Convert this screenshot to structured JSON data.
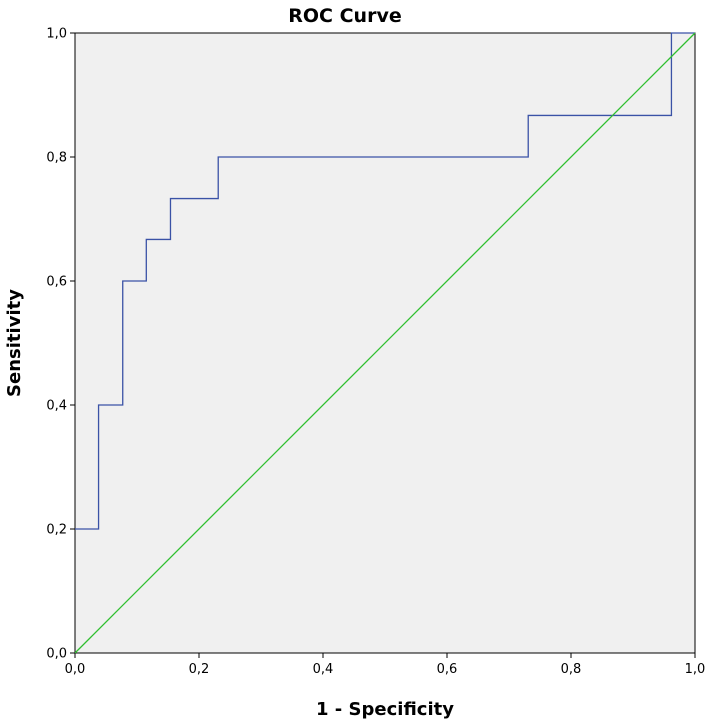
{
  "chart_data": {
    "type": "line",
    "title": "ROC Curve",
    "xlabel": "1 - Specificity",
    "ylabel": "Sensitivity",
    "xlim": [
      0,
      1
    ],
    "ylim": [
      0,
      1
    ],
    "grid": false,
    "x_ticks": [
      "0,0",
      "0,2",
      "0,4",
      "0,6",
      "0,8",
      "1,0"
    ],
    "y_ticks": [
      "0,0",
      "0,2",
      "0,4",
      "0,6",
      "0,8",
      "1,0"
    ],
    "x_tick_values": [
      0,
      0.2,
      0.4,
      0.6,
      0.8,
      1.0
    ],
    "y_tick_values": [
      0,
      0.2,
      0.4,
      0.6,
      0.8,
      1.0
    ],
    "plot_background": "#f0f0f0",
    "series": [
      {
        "style": "step",
        "color": "#3a52a6",
        "x": [
          0.0,
          0.038,
          0.038,
          0.077,
          0.077,
          0.115,
          0.115,
          0.154,
          0.154,
          0.231,
          0.231,
          0.731,
          0.731,
          0.962,
          0.962,
          1.0
        ],
        "y": [
          0.2,
          0.2,
          0.4,
          0.4,
          0.6,
          0.6,
          0.667,
          0.667,
          0.733,
          0.733,
          0.8,
          0.8,
          0.867,
          0.867,
          1.0,
          1.0
        ]
      },
      {
        "style": "line",
        "color": "#2fbf2f",
        "x": [
          0,
          1
        ],
        "y": [
          0,
          1
        ]
      }
    ]
  }
}
